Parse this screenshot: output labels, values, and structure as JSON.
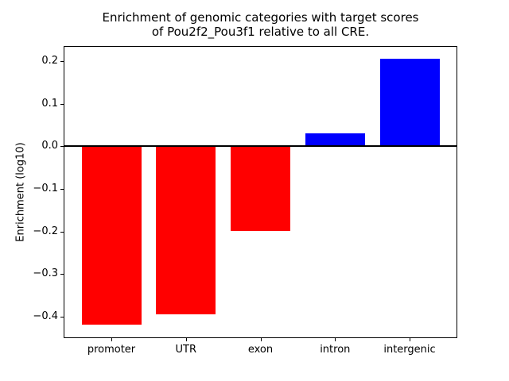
{
  "chart_data": {
    "type": "bar",
    "title": "Enrichment of genomic categories with target scores\nof Pou2f2_Pou3f1 relative to all CRE.",
    "xlabel": "",
    "ylabel": "Enrichment (log10)",
    "categories": [
      "promoter",
      "UTR",
      "exon",
      "intron",
      "intergenic"
    ],
    "values": [
      -0.42,
      -0.395,
      -0.2,
      0.03,
      0.206
    ],
    "yticks": [
      0.2,
      0.1,
      0.0,
      -0.1,
      -0.2,
      -0.3,
      -0.4
    ],
    "ylim": [
      -0.451,
      0.236
    ],
    "xlim": [
      -0.64,
      4.64
    ],
    "bar_width": 0.8,
    "positive_color": "#0000ff",
    "negative_color": "#ff0000",
    "axis_color": "#000000",
    "background_color": "#ffffff",
    "grid": false,
    "legend_position": "none"
  }
}
